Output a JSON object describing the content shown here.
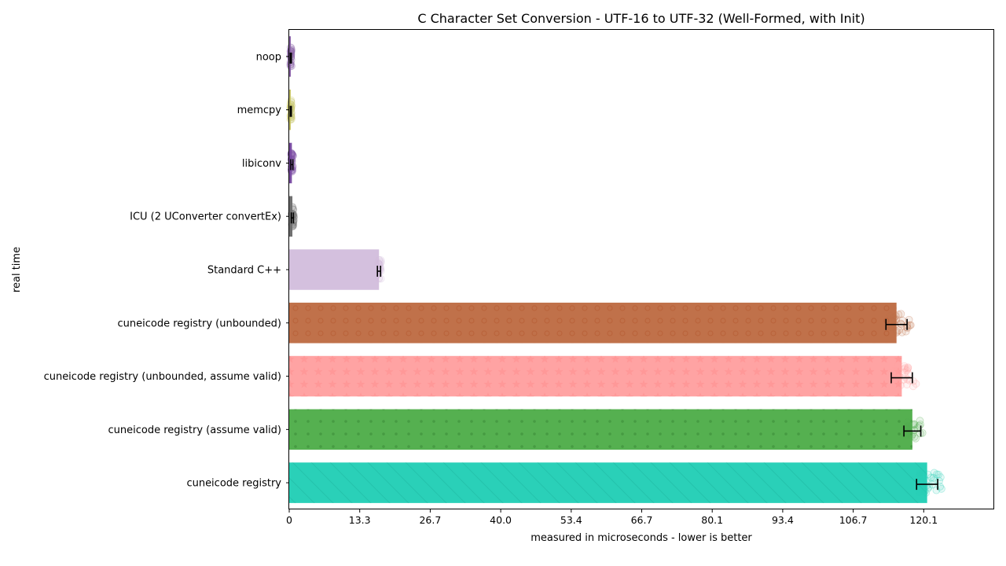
{
  "chart_data": {
    "type": "bar",
    "orientation": "horizontal",
    "title": "C Character Set Conversion - UTF-16 to UTF-32 (Well-Formed, with Init)",
    "xlabel": "measured in microseconds - lower is better",
    "ylabel": "real time",
    "xlim": [
      0,
      133.5
    ],
    "xticks": [
      "0",
      "13.3",
      "26.7",
      "40.0",
      "53.4",
      "66.7",
      "80.1",
      "93.4",
      "106.7",
      "120.1"
    ],
    "xtick_values": [
      0,
      13.35,
      26.7,
      40.05,
      53.4,
      66.75,
      80.1,
      93.45,
      106.8,
      120.15
    ],
    "grid": false,
    "categories": [
      "noop",
      "memcpy",
      "libiconv",
      "ICU (2 UConverter convertEx)",
      "Standard C++",
      "cuneicode registry (unbounded)",
      "cuneicode registry (unbounded, assume valid)",
      "cuneicode registry (assume valid)",
      "cuneicode registry"
    ],
    "series": [
      {
        "values": [
          0.3,
          0.3,
          0.5,
          0.6,
          17.0,
          115.0,
          116.0,
          118.0,
          120.8
        ],
        "error": [
          0.1,
          0.1,
          0.2,
          0.2,
          0.3,
          2.0,
          2.0,
          1.6,
          2.0
        ],
        "colors": [
          "#8a63a8",
          "#c8c56a",
          "#7b4ea3",
          "#707070",
          "#d4c0de",
          "#c0714a",
          "#ffa3a3",
          "#55b050",
          "#2ad0b8"
        ],
        "patterns": [
          "none",
          "none",
          "none",
          "none",
          "none",
          "circles",
          "stars",
          "dots",
          "diagonal"
        ]
      }
    ]
  }
}
